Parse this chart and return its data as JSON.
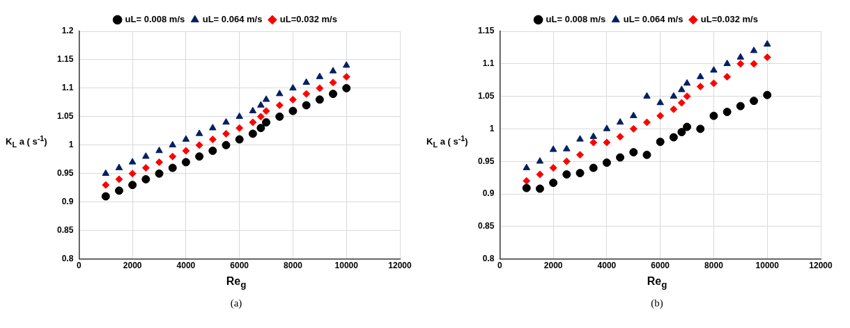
{
  "chart_data": [
    {
      "type": "scatter",
      "xlabel": "Re$_{g}$",
      "ylabel": "K$_{L}$ a ( s$^{-1}$)",
      "annotations": [
        "(a)"
      ],
      "x": [
        1000,
        1500,
        2000,
        2500,
        3000,
        3500,
        4000,
        4500,
        5000,
        5500,
        6000,
        6500,
        6800,
        7000,
        7500,
        8000,
        8500,
        9000,
        9500,
        10000
      ],
      "series": [
        {
          "name": "uL= 0.008 m/s",
          "color": "#000000",
          "marker": "circle",
          "values": [
            0.91,
            0.92,
            0.93,
            0.94,
            0.95,
            0.96,
            0.97,
            0.98,
            0.99,
            1.0,
            1.01,
            1.02,
            1.03,
            1.04,
            1.05,
            1.06,
            1.07,
            1.08,
            1.09,
            1.1
          ]
        },
        {
          "name": "uL= 0.064 m/s",
          "color": "#002060",
          "marker": "triangle",
          "values": [
            0.95,
            0.96,
            0.97,
            0.98,
            0.99,
            1.0,
            1.01,
            1.02,
            1.03,
            1.04,
            1.05,
            1.06,
            1.07,
            1.08,
            1.09,
            1.1,
            1.11,
            1.12,
            1.13,
            1.14
          ]
        },
        {
          "name": "uL=0.032 m/s",
          "color": "#ff0000",
          "marker": "diamond",
          "values": [
            0.93,
            0.94,
            0.95,
            0.96,
            0.97,
            0.98,
            0.99,
            1.0,
            1.01,
            1.02,
            1.03,
            1.04,
            1.05,
            1.06,
            1.07,
            1.08,
            1.09,
            1.1,
            1.11,
            1.12
          ]
        }
      ],
      "xlim": [
        0,
        12000
      ],
      "xticks": [
        0,
        2000,
        4000,
        6000,
        8000,
        10000,
        12000
      ],
      "ylim": [
        0.8,
        1.2
      ],
      "yticks": [
        0.8,
        0.85,
        0.9,
        0.95,
        1,
        1.05,
        1.1,
        1.15,
        1.2
      ],
      "grid": true,
      "legend": "top"
    },
    {
      "type": "scatter",
      "xlabel": "Re$_{g}$",
      "ylabel": "K$_{L}$ a ( s$^{-1}$)",
      "annotations": [
        "(b)"
      ],
      "x": [
        1000,
        1500,
        2000,
        2500,
        3000,
        3500,
        4000,
        4500,
        5000,
        5500,
        6000,
        6500,
        6800,
        7000,
        7500,
        8000,
        8500,
        9000,
        9500,
        10000
      ],
      "series": [
        {
          "name": "uL= 0.008 m/s",
          "color": "#000000",
          "marker": "circle",
          "values": [
            0.909,
            0.908,
            0.917,
            0.93,
            0.932,
            0.94,
            0.948,
            0.956,
            0.964,
            0.96,
            0.98,
            0.987,
            0.995,
            1.003,
            1.0,
            1.02,
            1.026,
            1.035,
            1.043,
            1.052
          ]
        },
        {
          "name": "uL= 0.064 m/s",
          "color": "#002060",
          "marker": "triangle",
          "values": [
            0.94,
            0.95,
            0.968,
            0.969,
            0.984,
            0.988,
            1.0,
            1.01,
            1.02,
            1.05,
            1.04,
            1.05,
            1.06,
            1.07,
            1.08,
            1.09,
            1.1,
            1.11,
            1.12,
            1.13
          ]
        },
        {
          "name": "uL=0.032 m/s",
          "color": "#ff0000",
          "marker": "diamond",
          "values": [
            0.92,
            0.93,
            0.94,
            0.95,
            0.96,
            0.979,
            0.979,
            0.988,
            1.0,
            1.01,
            1.02,
            1.03,
            1.04,
            1.05,
            1.065,
            1.07,
            1.08,
            1.1,
            1.1,
            1.11
          ]
        }
      ],
      "xlim": [
        0,
        12000
      ],
      "xticks": [
        0,
        2000,
        4000,
        6000,
        8000,
        10000,
        12000
      ],
      "ylim": [
        0.8,
        1.15
      ],
      "yticks": [
        0.8,
        0.85,
        0.9,
        0.95,
        1,
        1.05,
        1.1,
        1.15
      ],
      "grid": true,
      "legend": "top"
    }
  ]
}
